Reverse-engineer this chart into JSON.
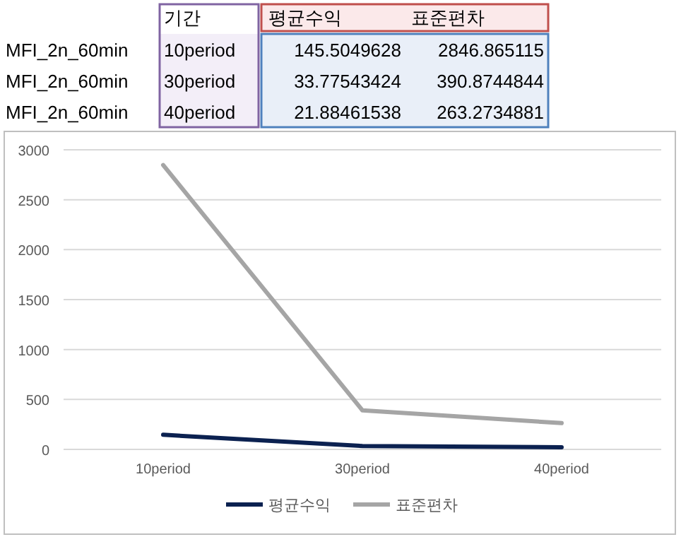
{
  "chart_data": [
    {
      "type": "other",
      "annotations": [
        "기간",
        "평균수익",
        "표준편차",
        "MFI_2n_60min",
        "10period",
        "145.5049628",
        "2846.865115",
        "MFI_2n_60min",
        "30period",
        "33.77543424",
        "390.8744844",
        "MFI_2n_60min",
        "40period",
        "21.88461538",
        "263.2734881"
      ]
    },
    {
      "type": "line",
      "categories": [
        "10period",
        "30period",
        "40period"
      ],
      "series": [
        {
          "name": "평균수익",
          "color": "#0b2150",
          "values": [
            146,
            34,
            22
          ]
        },
        {
          "name": "표준편차",
          "color": "#a5a5a5",
          "values": [
            2847,
            391,
            263
          ]
        }
      ],
      "ylim": [
        0,
        3000
      ],
      "yticks": [
        0,
        500,
        1000,
        1500,
        2000,
        2500,
        3000
      ],
      "grid": "y",
      "legend": "bottom",
      "line_style": "solid"
    }
  ]
}
